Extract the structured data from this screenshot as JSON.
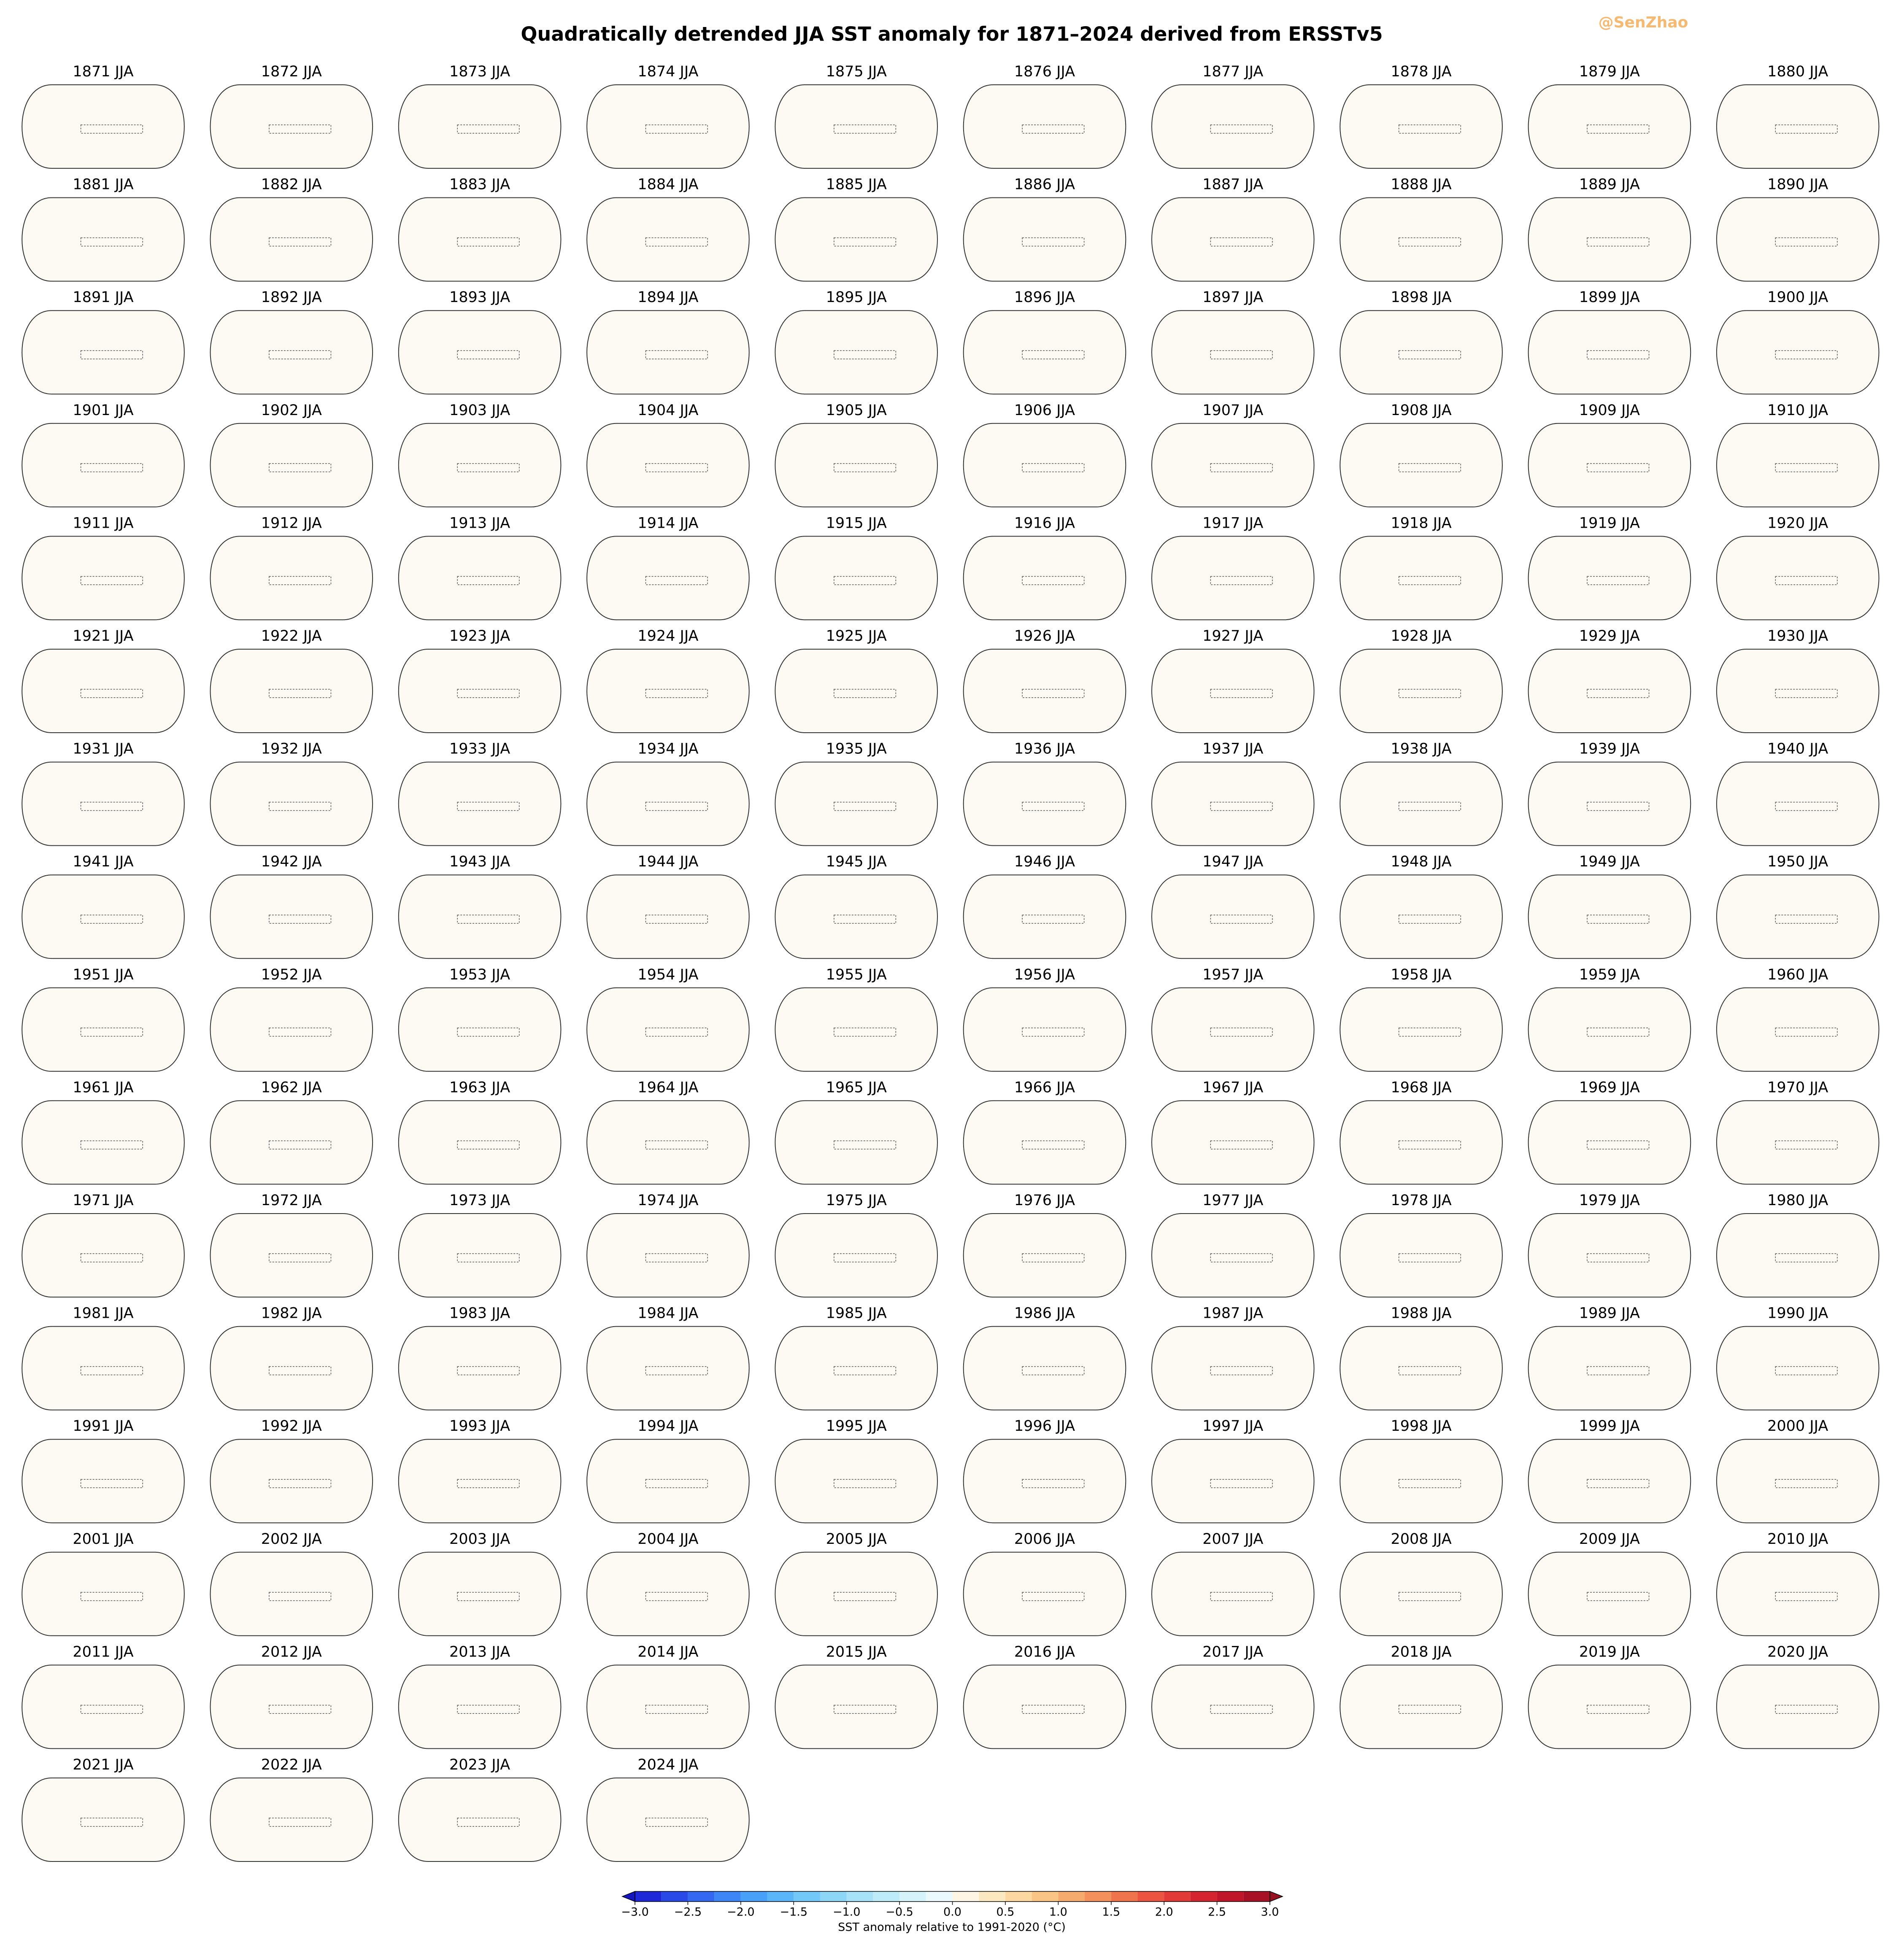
{
  "title": "Quadratically detrended JJA SST anomaly for 1871–2024 derived from ERSSTv5",
  "watermark": "@SenZhao",
  "panels": [
    "1871 JJA",
    "1872 JJA",
    "1873 JJA",
    "1874 JJA",
    "1875 JJA",
    "1876 JJA",
    "1877 JJA",
    "1878 JJA",
    "1879 JJA",
    "1880 JJA",
    "1881 JJA",
    "1882 JJA",
    "1883 JJA",
    "1884 JJA",
    "1885 JJA",
    "1886 JJA",
    "1887 JJA",
    "1888 JJA",
    "1889 JJA",
    "1890 JJA",
    "1891 JJA",
    "1892 JJA",
    "1893 JJA",
    "1894 JJA",
    "1895 JJA",
    "1896 JJA",
    "1897 JJA",
    "1898 JJA",
    "1899 JJA",
    "1900 JJA",
    "1901 JJA",
    "1902 JJA",
    "1903 JJA",
    "1904 JJA",
    "1905 JJA",
    "1906 JJA",
    "1907 JJA",
    "1908 JJA",
    "1909 JJA",
    "1910 JJA",
    "1911 JJA",
    "1912 JJA",
    "1913 JJA",
    "1914 JJA",
    "1915 JJA",
    "1916 JJA",
    "1917 JJA",
    "1918 JJA",
    "1919 JJA",
    "1920 JJA",
    "1921 JJA",
    "1922 JJA",
    "1923 JJA",
    "1924 JJA",
    "1925 JJA",
    "1926 JJA",
    "1927 JJA",
    "1928 JJA",
    "1929 JJA",
    "1930 JJA",
    "1931 JJA",
    "1932 JJA",
    "1933 JJA",
    "1934 JJA",
    "1935 JJA",
    "1936 JJA",
    "1937 JJA",
    "1938 JJA",
    "1939 JJA",
    "1940 JJA",
    "1941 JJA",
    "1942 JJA",
    "1943 JJA",
    "1944 JJA",
    "1945 JJA",
    "1946 JJA",
    "1947 JJA",
    "1948 JJA",
    "1949 JJA",
    "1950 JJA",
    "1951 JJA",
    "1952 JJA",
    "1953 JJA",
    "1954 JJA",
    "1955 JJA",
    "1956 JJA",
    "1957 JJA",
    "1958 JJA",
    "1959 JJA",
    "1960 JJA",
    "1961 JJA",
    "1962 JJA",
    "1963 JJA",
    "1964 JJA",
    "1965 JJA",
    "1966 JJA",
    "1967 JJA",
    "1968 JJA",
    "1969 JJA",
    "1970 JJA",
    "1971 JJA",
    "1972 JJA",
    "1973 JJA",
    "1974 JJA",
    "1975 JJA",
    "1976 JJA",
    "1977 JJA",
    "1978 JJA",
    "1979 JJA",
    "1980 JJA",
    "1981 JJA",
    "1982 JJA",
    "1983 JJA",
    "1984 JJA",
    "1985 JJA",
    "1986 JJA",
    "1987 JJA",
    "1988 JJA",
    "1989 JJA",
    "1990 JJA",
    "1991 JJA",
    "1992 JJA",
    "1993 JJA",
    "1994 JJA",
    "1995 JJA",
    "1996 JJA",
    "1997 JJA",
    "1998 JJA",
    "1999 JJA",
    "2000 JJA",
    "2001 JJA",
    "2002 JJA",
    "2003 JJA",
    "2004 JJA",
    "2005 JJA",
    "2006 JJA",
    "2007 JJA",
    "2008 JJA",
    "2009 JJA",
    "2010 JJA",
    "2011 JJA",
    "2012 JJA",
    "2013 JJA",
    "2014 JJA",
    "2015 JJA",
    "2016 JJA",
    "2017 JJA",
    "2018 JJA",
    "2019 JJA",
    "2020 JJA",
    "2021 JJA",
    "2022 JJA",
    "2023 JJA",
    "2024 JJA"
  ],
  "colorbar": {
    "label": "SST anomaly relative to 1991-2020 (°C)",
    "xlim": [
      -3,
      3
    ],
    "levels": [
      -3,
      -2.75,
      -2.5,
      -2.25,
      -2,
      -1.75,
      -1.5,
      -1.25,
      -1,
      -0.75,
      -0.5,
      -0.25,
      0,
      0.25,
      0.5,
      0.75,
      1,
      1.25,
      1.5,
      1.75,
      2,
      2.25,
      2.5,
      2.75,
      3
    ],
    "colors": [
      "#1e28d8",
      "#2a4ae8",
      "#3468f0",
      "#3e86f5",
      "#4aa0f8",
      "#5ab6f8",
      "#72c8f8",
      "#8cd6f8",
      "#a6e2f8",
      "#bdebf8",
      "#d4f3fa",
      "#eafafc",
      "#fdf6e4",
      "#fce8c0",
      "#fbd8a0",
      "#f9c484",
      "#f6ab6e",
      "#f3905c",
      "#ef744c",
      "#ea5440",
      "#e23a36",
      "#d42430",
      "#c0162a",
      "#a81026"
    ],
    "extend_colors": [
      "#1414c0",
      "#96101f"
    ],
    "xticks": [
      {
        "value": -3,
        "label": "−3.0"
      },
      {
        "value": -2.5,
        "label": "−2.5"
      },
      {
        "value": -2,
        "label": "−2.0"
      },
      {
        "value": -1.5,
        "label": "−1.5"
      },
      {
        "value": -1,
        "label": "−1.0"
      },
      {
        "value": -0.5,
        "label": "−0.5"
      },
      {
        "value": 0,
        "label": "0.0"
      },
      {
        "value": 0.5,
        "label": "0.5"
      },
      {
        "value": 1,
        "label": "1.0"
      },
      {
        "value": 1.5,
        "label": "1.5"
      },
      {
        "value": 2,
        "label": "2.0"
      },
      {
        "value": 2.5,
        "label": "2.5"
      },
      {
        "value": 3,
        "label": "3.0"
      }
    ]
  }
}
